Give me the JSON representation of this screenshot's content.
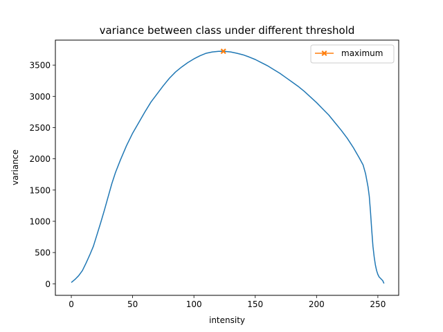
{
  "chart_data": {
    "type": "line",
    "title": "variance between class under different threshold",
    "xlabel": "intensity",
    "ylabel": "variance",
    "xlim": [
      -13,
      267
    ],
    "ylim": [
      -185,
      3900
    ],
    "xticks": [
      0,
      50,
      100,
      150,
      200,
      250
    ],
    "yticks": [
      0,
      500,
      1000,
      1500,
      2000,
      2500,
      3000,
      3500
    ],
    "grid": false,
    "legend_position": "upper right",
    "series": [
      {
        "color": "#1f77b4",
        "x": [
          0,
          3,
          6,
          9,
          12,
          15,
          18,
          21,
          24,
          27,
          30,
          33,
          36,
          40,
          45,
          50,
          55,
          60,
          65,
          70,
          75,
          80,
          85,
          90,
          95,
          100,
          105,
          110,
          115,
          120,
          124,
          130,
          135,
          140,
          145,
          150,
          155,
          160,
          165,
          170,
          175,
          180,
          185,
          190,
          195,
          200,
          205,
          210,
          215,
          220,
          225,
          230,
          235,
          238,
          240,
          242,
          243,
          244,
          245,
          246,
          247,
          248,
          249,
          250,
          251,
          252,
          253,
          254,
          255
        ],
        "y": [
          20,
          70,
          130,
          210,
          330,
          460,
          600,
          790,
          980,
          1180,
          1390,
          1600,
          1780,
          1980,
          2210,
          2410,
          2580,
          2750,
          2910,
          3040,
          3170,
          3290,
          3390,
          3470,
          3540,
          3600,
          3650,
          3690,
          3710,
          3720,
          3722,
          3710,
          3690,
          3665,
          3630,
          3590,
          3540,
          3490,
          3430,
          3370,
          3300,
          3230,
          3160,
          3080,
          2990,
          2900,
          2800,
          2700,
          2580,
          2460,
          2330,
          2180,
          2010,
          1900,
          1760,
          1550,
          1400,
          1150,
          860,
          600,
          430,
          300,
          210,
          150,
          110,
          90,
          70,
          50,
          5
        ]
      },
      {
        "name": "maximum",
        "color": "#ff7f0e",
        "marker": "X",
        "x": [
          124
        ],
        "y": [
          3722
        ]
      }
    ]
  }
}
